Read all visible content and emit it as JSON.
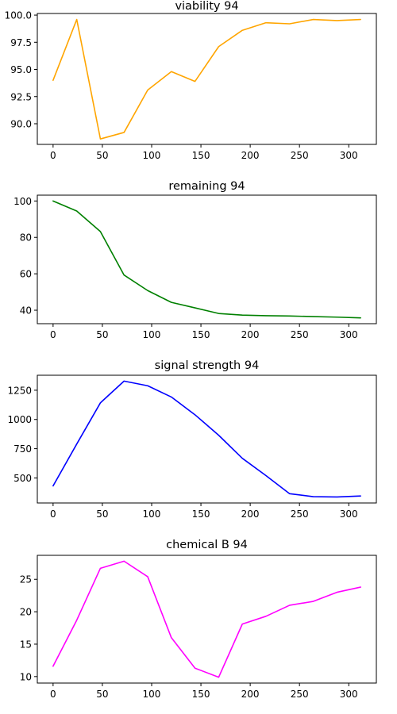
{
  "chart_data": [
    {
      "type": "line",
      "title": "viability 94",
      "color": "#ffa500",
      "x": [
        0,
        24,
        48,
        72,
        96,
        120,
        144,
        168,
        192,
        216,
        240,
        264,
        288,
        312
      ],
      "values": [
        94.0,
        99.6,
        88.6,
        89.2,
        93.1,
        94.8,
        93.9,
        97.1,
        98.6,
        99.3,
        99.2,
        99.6,
        99.5,
        99.6
      ],
      "xlim": [
        -16,
        328
      ],
      "ylim": [
        88.1,
        100.15
      ],
      "xticks": [
        0,
        50,
        100,
        150,
        200,
        250,
        300
      ],
      "yticks": [
        90.0,
        92.5,
        95.0,
        97.5,
        100.0
      ],
      "ytick_labels": [
        "90.0",
        "92.5",
        "95.0",
        "97.5",
        "100.0"
      ]
    },
    {
      "type": "line",
      "title": "remaining 94",
      "color": "#008000",
      "x": [
        0,
        24,
        48,
        72,
        96,
        120,
        144,
        168,
        192,
        216,
        240,
        264,
        288,
        312
      ],
      "values": [
        100.0,
        94.5,
        83.2,
        59.3,
        50.8,
        44.3,
        41.3,
        38.2,
        37.3,
        37.0,
        36.8,
        36.5,
        36.2,
        35.8
      ],
      "xlim": [
        -16,
        328
      ],
      "ylim": [
        32.6,
        103.2
      ],
      "xticks": [
        0,
        50,
        100,
        150,
        200,
        250,
        300
      ],
      "yticks": [
        40,
        60,
        80,
        100
      ],
      "ytick_labels": [
        "40",
        "60",
        "80",
        "100"
      ]
    },
    {
      "type": "line",
      "title": "signal strength 94",
      "color": "#0000ff",
      "x": [
        0,
        24,
        48,
        72,
        96,
        120,
        144,
        168,
        192,
        216,
        240,
        264,
        288,
        312
      ],
      "values": [
        432,
        790,
        1142,
        1328,
        1288,
        1192,
        1040,
        865,
        668,
        520,
        365,
        340,
        337,
        346
      ],
      "xlim": [
        -16,
        328
      ],
      "ylim": [
        286,
        1378
      ],
      "xticks": [
        0,
        50,
        100,
        150,
        200,
        250,
        300
      ],
      "yticks": [
        500,
        750,
        1000,
        1250
      ],
      "ytick_labels": [
        "500",
        "750",
        "1000",
        "1250"
      ]
    },
    {
      "type": "line",
      "title": "chemical B 94",
      "color": "#ff00ff",
      "x": [
        0,
        24,
        48,
        72,
        96,
        120,
        144,
        168,
        192,
        216,
        240,
        264,
        288,
        312
      ],
      "values": [
        11.6,
        18.7,
        26.7,
        27.8,
        25.4,
        16.0,
        11.3,
        9.9,
        18.1,
        19.3,
        21.0,
        21.6,
        23.0,
        23.8
      ],
      "xlim": [
        -16,
        328
      ],
      "ylim": [
        9.0,
        28.7
      ],
      "xticks": [
        0,
        50,
        100,
        150,
        200,
        250,
        300
      ],
      "yticks": [
        10,
        15,
        20,
        25
      ],
      "ytick_labels": [
        "10",
        "15",
        "20",
        "25"
      ]
    }
  ]
}
